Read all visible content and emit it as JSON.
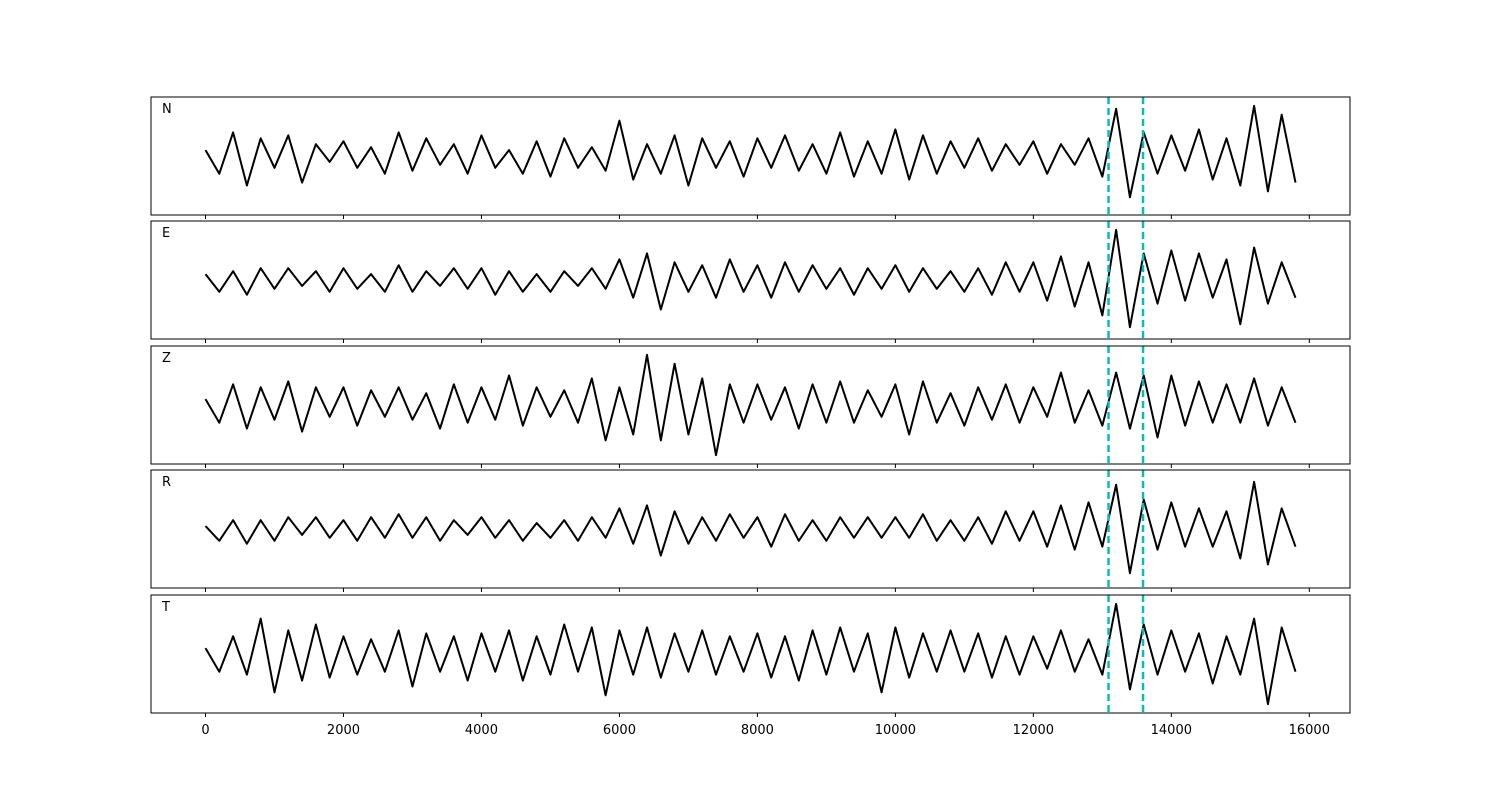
{
  "chart_data": [
    {
      "type": "line",
      "label": "N",
      "xlim": [
        -790,
        16590
      ],
      "ylim": [
        -1,
        1
      ],
      "xticks": [
        0,
        2000,
        4000,
        6000,
        8000,
        10000,
        12000,
        14000,
        16000
      ],
      "xtick_labels": false,
      "vlines": [
        13090,
        13590
      ],
      "vline_color": "#00bfbf",
      "x": [
        0,
        200,
        400,
        600,
        800,
        1000,
        1200,
        1400,
        1600,
        1800,
        2000,
        2200,
        2400,
        2600,
        2800,
        3000,
        3200,
        3400,
        3600,
        3800,
        4000,
        4200,
        4400,
        4600,
        4800,
        5000,
        5200,
        5400,
        5600,
        5800,
        6000,
        6200,
        6400,
        6600,
        6800,
        7000,
        7200,
        7400,
        7600,
        7800,
        8000,
        8200,
        8400,
        8600,
        8800,
        9000,
        9200,
        9400,
        9600,
        9800,
        10000,
        10200,
        10400,
        10600,
        10800,
        11000,
        11200,
        11400,
        11600,
        11800,
        12000,
        12200,
        12400,
        12600,
        12800,
        13000,
        13200,
        13400,
        13600,
        13800,
        14000,
        14200,
        14400,
        14600,
        14800,
        15000,
        15200,
        15400,
        15600,
        15800
      ],
      "series": [
        {
          "color": "#000000",
          "values": [
            0.1,
            -0.3,
            0.4,
            -0.5,
            0.3,
            -0.2,
            0.35,
            -0.45,
            0.2,
            -0.1,
            0.25,
            -0.2,
            0.15,
            -0.3,
            0.4,
            -0.25,
            0.3,
            -0.15,
            0.2,
            -0.3,
            0.35,
            -0.2,
            0.1,
            -0.3,
            0.25,
            -0.35,
            0.3,
            -0.2,
            0.15,
            -0.25,
            0.6,
            -0.4,
            0.2,
            -0.3,
            0.35,
            -0.5,
            0.3,
            -0.2,
            0.25,
            -0.35,
            0.3,
            -0.2,
            0.35,
            -0.25,
            0.2,
            -0.3,
            0.4,
            -0.35,
            0.25,
            -0.3,
            0.45,
            -0.4,
            0.35,
            -0.3,
            0.25,
            -0.2,
            0.3,
            -0.25,
            0.2,
            -0.15,
            0.25,
            -0.3,
            0.2,
            -0.15,
            0.3,
            -0.35,
            0.8,
            -0.7,
            0.4,
            -0.3,
            0.35,
            -0.25,
            0.45,
            -0.4,
            0.3,
            -0.5,
            0.85,
            -0.6,
            0.7,
            -0.45
          ]
        }
      ]
    },
    {
      "type": "line",
      "label": "E",
      "xlim": [
        -790,
        16590
      ],
      "ylim": [
        -1,
        1
      ],
      "xticks": [
        0,
        2000,
        4000,
        6000,
        8000,
        10000,
        12000,
        14000,
        16000
      ],
      "xtick_labels": false,
      "vlines": [
        13090,
        13590
      ],
      "vline_color": "#00bfbf",
      "x": [
        0,
        200,
        400,
        600,
        800,
        1000,
        1200,
        1400,
        1600,
        1800,
        2000,
        2200,
        2400,
        2600,
        2800,
        3000,
        3200,
        3400,
        3600,
        3800,
        4000,
        4200,
        4400,
        4600,
        4800,
        5000,
        5200,
        5400,
        5600,
        5800,
        6000,
        6200,
        6400,
        6600,
        6800,
        7000,
        7200,
        7400,
        7600,
        7800,
        8000,
        8200,
        8400,
        8600,
        8800,
        9000,
        9200,
        9400,
        9600,
        9800,
        10000,
        10200,
        10400,
        10600,
        10800,
        11000,
        11200,
        11400,
        11600,
        11800,
        12000,
        12200,
        12400,
        12600,
        12800,
        13000,
        13200,
        13400,
        13600,
        13800,
        14000,
        14200,
        14400,
        14600,
        14800,
        15000,
        15200,
        15400,
        15600,
        15800
      ],
      "series": [
        {
          "color": "#000000",
          "values": [
            0.1,
            -0.2,
            0.15,
            -0.25,
            0.2,
            -0.15,
            0.2,
            -0.1,
            0.15,
            -0.2,
            0.2,
            -0.15,
            0.1,
            -0.2,
            0.25,
            -0.2,
            0.15,
            -0.1,
            0.2,
            -0.15,
            0.2,
            -0.25,
            0.15,
            -0.2,
            0.1,
            -0.2,
            0.15,
            -0.1,
            0.2,
            -0.15,
            0.35,
            -0.3,
            0.45,
            -0.5,
            0.3,
            -0.2,
            0.25,
            -0.3,
            0.35,
            -0.2,
            0.25,
            -0.3,
            0.3,
            -0.2,
            0.25,
            -0.15,
            0.2,
            -0.25,
            0.2,
            -0.15,
            0.25,
            -0.2,
            0.2,
            -0.15,
            0.15,
            -0.2,
            0.2,
            -0.25,
            0.3,
            -0.2,
            0.3,
            -0.35,
            0.4,
            -0.45,
            0.3,
            -0.6,
            0.85,
            -0.8,
            0.45,
            -0.4,
            0.5,
            -0.35,
            0.45,
            -0.3,
            0.35,
            -0.75,
            0.55,
            -0.4,
            0.3,
            -0.3
          ]
        }
      ]
    },
    {
      "type": "line",
      "label": "Z",
      "xlim": [
        -790,
        16590
      ],
      "ylim": [
        -1,
        1
      ],
      "xticks": [
        0,
        2000,
        4000,
        6000,
        8000,
        10000,
        12000,
        14000,
        16000
      ],
      "xtick_labels": false,
      "vlines": [
        13090,
        13590
      ],
      "vline_color": "#00bfbf",
      "x": [
        0,
        200,
        400,
        600,
        800,
        1000,
        1200,
        1400,
        1600,
        1800,
        2000,
        2200,
        2400,
        2600,
        2800,
        3000,
        3200,
        3400,
        3600,
        3800,
        4000,
        4200,
        4400,
        4600,
        4800,
        5000,
        5200,
        5400,
        5600,
        5800,
        6000,
        6200,
        6400,
        6600,
        6800,
        7000,
        7200,
        7400,
        7600,
        7800,
        8000,
        8200,
        8400,
        8600,
        8800,
        9000,
        9200,
        9400,
        9600,
        9800,
        10000,
        10200,
        10400,
        10600,
        10800,
        11000,
        11200,
        11400,
        11600,
        11800,
        12000,
        12200,
        12400,
        12600,
        12800,
        13000,
        13200,
        13400,
        13600,
        13800,
        14000,
        14200,
        14400,
        14600,
        14800,
        15000,
        15200,
        15400,
        15600,
        15800
      ],
      "series": [
        {
          "color": "#000000",
          "values": [
            0.1,
            -0.3,
            0.35,
            -0.4,
            0.3,
            -0.25,
            0.4,
            -0.45,
            0.3,
            -0.2,
            0.3,
            -0.35,
            0.25,
            -0.2,
            0.3,
            -0.25,
            0.2,
            -0.4,
            0.35,
            -0.3,
            0.3,
            -0.25,
            0.5,
            -0.35,
            0.3,
            -0.2,
            0.25,
            -0.3,
            0.45,
            -0.6,
            0.3,
            -0.5,
            0.85,
            -0.6,
            0.7,
            -0.5,
            0.45,
            -0.85,
            0.35,
            -0.3,
            0.35,
            -0.25,
            0.3,
            -0.4,
            0.35,
            -0.3,
            0.4,
            -0.3,
            0.25,
            -0.2,
            0.35,
            -0.5,
            0.4,
            -0.3,
            0.2,
            -0.35,
            0.3,
            -0.25,
            0.35,
            -0.3,
            0.3,
            -0.2,
            0.55,
            -0.3,
            0.25,
            -0.35,
            0.55,
            -0.4,
            0.5,
            -0.55,
            0.5,
            -0.35,
            0.4,
            -0.3,
            0.35,
            -0.3,
            0.45,
            -0.35,
            0.3,
            -0.3
          ]
        }
      ]
    },
    {
      "type": "line",
      "label": "R",
      "xlim": [
        -790,
        16590
      ],
      "ylim": [
        -1,
        1
      ],
      "xticks": [
        0,
        2000,
        4000,
        6000,
        8000,
        10000,
        12000,
        14000,
        16000
      ],
      "xtick_labels": false,
      "vlines": [
        13090,
        13590
      ],
      "vline_color": "#00bfbf",
      "x": [
        0,
        200,
        400,
        600,
        800,
        1000,
        1200,
        1400,
        1600,
        1800,
        2000,
        2200,
        2400,
        2600,
        2800,
        3000,
        3200,
        3400,
        3600,
        3800,
        4000,
        4200,
        4400,
        4600,
        4800,
        5000,
        5200,
        5400,
        5600,
        5800,
        6000,
        6200,
        6400,
        6600,
        6800,
        7000,
        7200,
        7400,
        7600,
        7800,
        8000,
        8200,
        8400,
        8600,
        8800,
        9000,
        9200,
        9400,
        9600,
        9800,
        10000,
        10200,
        10400,
        10600,
        10800,
        11000,
        11200,
        11400,
        11600,
        11800,
        12000,
        12200,
        12400,
        12600,
        12800,
        13000,
        13200,
        13400,
        13600,
        13800,
        14000,
        14200,
        14400,
        14600,
        14800,
        15000,
        15200,
        15400,
        15600,
        15800
      ],
      "series": [
        {
          "color": "#000000",
          "values": [
            0.05,
            -0.2,
            0.15,
            -0.25,
            0.15,
            -0.2,
            0.2,
            -0.1,
            0.2,
            -0.15,
            0.15,
            -0.2,
            0.2,
            -0.15,
            0.25,
            -0.15,
            0.2,
            -0.2,
            0.15,
            -0.1,
            0.2,
            -0.15,
            0.15,
            -0.2,
            0.1,
            -0.15,
            0.15,
            -0.2,
            0.2,
            -0.15,
            0.35,
            -0.25,
            0.4,
            -0.45,
            0.3,
            -0.25,
            0.2,
            -0.2,
            0.25,
            -0.15,
            0.2,
            -0.3,
            0.25,
            -0.2,
            0.15,
            -0.2,
            0.2,
            -0.15,
            0.2,
            -0.15,
            0.2,
            -0.15,
            0.25,
            -0.2,
            0.15,
            -0.2,
            0.2,
            -0.25,
            0.3,
            -0.2,
            0.3,
            -0.3,
            0.4,
            -0.35,
            0.45,
            -0.3,
            0.75,
            -0.75,
            0.5,
            -0.35,
            0.45,
            -0.3,
            0.35,
            -0.3,
            0.3,
            -0.5,
            0.8,
            -0.6,
            0.35,
            -0.3
          ]
        }
      ]
    },
    {
      "type": "line",
      "label": "T",
      "xlim": [
        -790,
        16590
      ],
      "ylim": [
        -1,
        1
      ],
      "xticks": [
        0,
        2000,
        4000,
        6000,
        8000,
        10000,
        12000,
        14000,
        16000
      ],
      "xtick_labels": true,
      "vlines": [
        13090,
        13590
      ],
      "vline_color": "#00bfbf",
      "x": [
        0,
        200,
        400,
        600,
        800,
        1000,
        1200,
        1400,
        1600,
        1800,
        2000,
        2200,
        2400,
        2600,
        2800,
        3000,
        3200,
        3400,
        3600,
        3800,
        4000,
        4200,
        4400,
        4600,
        4800,
        5000,
        5200,
        5400,
        5600,
        5800,
        6000,
        6200,
        6400,
        6600,
        6800,
        7000,
        7200,
        7400,
        7600,
        7800,
        8000,
        8200,
        8400,
        8600,
        8800,
        9000,
        9200,
        9400,
        9600,
        9800,
        10000,
        10200,
        10400,
        10600,
        10800,
        11000,
        11200,
        11400,
        11600,
        11800,
        12000,
        12200,
        12400,
        12600,
        12800,
        13000,
        13200,
        13400,
        13600,
        13800,
        14000,
        14200,
        14400,
        14600,
        14800,
        15000,
        15200,
        15400,
        15600,
        15800
      ],
      "series": [
        {
          "color": "#000000",
          "values": [
            0.1,
            -0.3,
            0.3,
            -0.35,
            0.6,
            -0.65,
            0.4,
            -0.45,
            0.5,
            -0.4,
            0.3,
            -0.35,
            0.25,
            -0.3,
            0.4,
            -0.55,
            0.35,
            -0.3,
            0.3,
            -0.45,
            0.35,
            -0.3,
            0.4,
            -0.45,
            0.3,
            -0.35,
            0.5,
            -0.3,
            0.45,
            -0.7,
            0.4,
            -0.35,
            0.45,
            -0.4,
            0.35,
            -0.3,
            0.4,
            -0.35,
            0.3,
            -0.3,
            0.35,
            -0.4,
            0.3,
            -0.45,
            0.4,
            -0.35,
            0.45,
            -0.3,
            0.35,
            -0.65,
            0.45,
            -0.4,
            0.35,
            -0.3,
            0.4,
            -0.3,
            0.35,
            -0.4,
            0.3,
            -0.35,
            0.3,
            -0.25,
            0.4,
            -0.3,
            0.25,
            -0.35,
            0.85,
            -0.6,
            0.5,
            -0.35,
            0.4,
            -0.3,
            0.35,
            -0.5,
            0.3,
            -0.35,
            0.6,
            -0.85,
            0.45,
            -0.3
          ]
        }
      ]
    }
  ]
}
